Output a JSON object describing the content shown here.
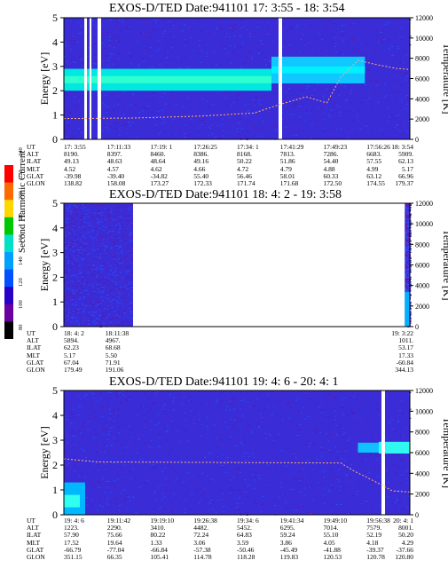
{
  "colorbar": {
    "label": "Second Harmonic Current",
    "ticks": [
      "240",
      "220",
      "200",
      "180",
      "160",
      "140",
      "120",
      "100",
      "80"
    ],
    "colors": [
      "#ff0000",
      "#ff6a00",
      "#ffd700",
      "#00c800",
      "#00e0c8",
      "#00a0ff",
      "#0050ff",
      "#2800c8",
      "#6a00a0",
      "#000000"
    ]
  },
  "panels": [
    {
      "title": "EXOS-D/TED   Date:941101  17: 3:55 - 18: 3:54",
      "ylabel": "Energy [eV]",
      "y2label": "Temperature [K]",
      "yticks": [
        "5",
        "4",
        "3",
        "2",
        "1",
        "0"
      ],
      "y2ticks": [
        "12000",
        "10000",
        "8000",
        "6000",
        "4000",
        "2000",
        "0"
      ],
      "rows": [
        {
          "label": "UT",
          "values": [
            "17: 3:55",
            "17:11:33",
            "17:19: 1",
            "17:26:25",
            "17:34: 1",
            "17:41:29",
            "17:49:23",
            "17:56:26",
            "18: 3:54"
          ]
        },
        {
          "label": "ALT",
          "values": [
            "8190.",
            "8397.",
            "8460.",
            "8386.",
            "8168.",
            "7813.",
            "7286.",
            "6683.",
            "5909."
          ]
        },
        {
          "label": "ILAT",
          "values": [
            "49.13",
            "48.63",
            "48.64",
            "49.16",
            "50.22",
            "51.86",
            "54.40",
            "57.55",
            "62.13"
          ]
        },
        {
          "label": "MLT",
          "values": [
            "4.52",
            "4.57",
            "4.62",
            "4.66",
            "4.72",
            "4.79",
            "4.88",
            "4.99",
            "5.17"
          ]
        },
        {
          "label": "GLAT",
          "values": [
            "-39.98",
            "-39.40",
            "-34.82",
            "55.40",
            "56.46",
            "58.01",
            "60.33",
            "63.12",
            "66.96"
          ]
        },
        {
          "label": "GLON",
          "values": [
            "138.82",
            "158.08",
            "173.27",
            "172.33",
            "171.74",
            "171.68",
            "172.50",
            "174.55",
            "179.37"
          ]
        }
      ]
    },
    {
      "title": "EXOS-D/TED   Date:941101  18: 4: 2 - 19: 3:58",
      "ylabel": "Energy [eV]",
      "y2label": "Temperature [K]",
      "yticks": [
        "5",
        "4",
        "3",
        "2",
        "1",
        "0"
      ],
      "y2ticks": [
        "12000",
        "10000",
        "8000",
        "6000",
        "4000",
        "2000",
        "0"
      ],
      "rows": [
        {
          "label": "UT",
          "values": [
            "18: 4: 2",
            "18:11:38",
            "19: 3:22"
          ]
        },
        {
          "label": "ALT",
          "values": [
            "5894.",
            "4967.",
            "1011."
          ]
        },
        {
          "label": "ILAT",
          "values": [
            "62.23",
            "68.68",
            "53.17"
          ]
        },
        {
          "label": "MLT",
          "values": [
            "5.17",
            "5.50",
            "17.33"
          ]
        },
        {
          "label": "GLAT",
          "values": [
            "67.04",
            "71.91",
            "-60.84"
          ]
        },
        {
          "label": "GLON",
          "values": [
            "179.49",
            "191.06",
            "344.13"
          ]
        }
      ]
    },
    {
      "title": "EXOS-D/TED   Date:941101  19: 4: 6 - 20: 4: 1",
      "ylabel": "Energy [eV]",
      "y2label": "Temperature [K]",
      "yticks": [
        "5",
        "4",
        "3",
        "2",
        "1",
        "0"
      ],
      "y2ticks": [
        "12000",
        "10000",
        "8000",
        "6000",
        "4000",
        "2000",
        "0"
      ],
      "rows": [
        {
          "label": "UT",
          "values": [
            "19: 4: 6",
            "19:11:42",
            "19:19:10",
            "19:26:38",
            "19:34: 6",
            "19:41:34",
            "19:49:10",
            "19:56:38",
            "20: 4: 1"
          ]
        },
        {
          "label": "ALT",
          "values": [
            "1223.",
            "2290.",
            "3410.",
            "4482.",
            "5452.",
            "6295.",
            "7014.",
            "7579.",
            "8001."
          ]
        },
        {
          "label": "ILAT",
          "values": [
            "57.90",
            "75.66",
            "80.22",
            "72.24",
            "64.83",
            "59.24",
            "55.10",
            "52.19",
            "50.20"
          ]
        },
        {
          "label": "MLT",
          "values": [
            "17.52",
            "19.64",
            "1.33",
            "3.06",
            "3.59",
            "3.86",
            "4.05",
            "4.18",
            "4.29"
          ]
        },
        {
          "label": "GLAT",
          "values": [
            "-66.79",
            "-77.04",
            "-66.84",
            "-57.38",
            "-50.46",
            "-45.49",
            "-41.88",
            "-39.37",
            "-37.66"
          ]
        },
        {
          "label": "GLON",
          "values": [
            "351.15",
            "66.35",
            "105.41",
            "114.78",
            "118.28",
            "119.83",
            "120.53",
            "120.78",
            "120.80"
          ]
        }
      ]
    }
  ],
  "chart_data": {
    "type": "heatmap",
    "colorbar_ticks": [
      240,
      220,
      200,
      180,
      160,
      140,
      120,
      100,
      80
    ],
    "panels": [
      {
        "title": "EXOS-D/TED   Date:941101  17: 3:55 - 18: 3:54",
        "ylabel": "Energy [eV]",
        "y2label": "Temperature [K]",
        "ylim": [
          0,
          5
        ],
        "y2lim": [
          0,
          12000
        ],
        "bands": [
          {
            "x_start": 0,
            "x_end": 0.6,
            "e_low": 2.0,
            "e_high": 2.9
          },
          {
            "x_start": 0.6,
            "x_end": 0.87,
            "e_low": 2.3,
            "e_high": 3.4
          }
        ],
        "temperature_trace": [
          [
            0,
            2050
          ],
          [
            0.2,
            2100
          ],
          [
            0.4,
            2300
          ],
          [
            0.55,
            2600
          ],
          [
            0.62,
            3400
          ],
          [
            0.7,
            4200
          ],
          [
            0.76,
            3600
          ],
          [
            0.8,
            6100
          ],
          [
            0.85,
            7800
          ],
          [
            0.9,
            7400
          ],
          [
            0.96,
            7000
          ],
          [
            1,
            6900
          ]
        ]
      },
      {
        "title": "EXOS-D/TED   Date:941101  18: 4: 2 - 19: 3:58",
        "ylabel": "Energy [eV]",
        "y2label": "Temperature [K]",
        "ylim": [
          0,
          5
        ],
        "y2lim": [
          0,
          12000
        ],
        "data_intervals": [
          [
            0,
            0.2
          ],
          [
            0.985,
            1.0
          ]
        ]
      },
      {
        "title": "EXOS-D/TED   Date:941101  19: 4: 6 - 20: 4: 1",
        "ylabel": "Energy [eV]",
        "y2label": "Temperature [K]",
        "ylim": [
          0,
          5
        ],
        "y2lim": [
          0,
          12000
        ],
        "bands": [
          {
            "x_start": 0.85,
            "x_end": 1.0,
            "e_low": 2.5,
            "e_high": 2.9
          }
        ],
        "temperature_trace": [
          [
            0.0,
            5400
          ],
          [
            0.1,
            5100
          ],
          [
            0.8,
            5000
          ],
          [
            0.84,
            4200
          ],
          [
            0.9,
            3200
          ],
          [
            0.95,
            2300
          ],
          [
            1,
            2200
          ]
        ]
      }
    ]
  }
}
